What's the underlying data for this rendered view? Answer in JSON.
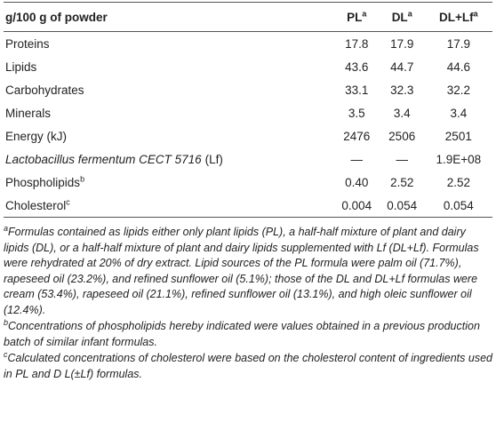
{
  "table": {
    "header": [
      {
        "text": "g/100 g of powder"
      },
      {
        "text": "PL",
        "sup": "a"
      },
      {
        "text": "DL",
        "sup": "a"
      },
      {
        "text": "DL+Lf",
        "sup": "a"
      }
    ],
    "rows": [
      {
        "label": {
          "text": "Proteins"
        },
        "cells": [
          "17.8",
          "17.9",
          "17.9"
        ]
      },
      {
        "label": {
          "text": "Lipids"
        },
        "cells": [
          "43.6",
          "44.7",
          "44.6"
        ]
      },
      {
        "label": {
          "text": "Carbohydrates"
        },
        "cells": [
          "33.1",
          "32.3",
          "32.2"
        ]
      },
      {
        "label": {
          "text": "Minerals"
        },
        "cells": [
          "3.5",
          "3.4",
          "3.4"
        ]
      },
      {
        "label": {
          "text": "Energy (kJ)"
        },
        "cells": [
          "2476",
          "2506",
          "2501"
        ]
      },
      {
        "label": {
          "text": "Lactobacillus fermentum CECT 5716",
          "italic": true,
          "suffix": "(Lf)"
        },
        "cells": [
          "—",
          "—",
          "1.9E+08"
        ]
      },
      {
        "label": {
          "text": "Phospholipids",
          "sup": "b"
        },
        "cells": [
          "0.40",
          "2.52",
          "2.52"
        ]
      },
      {
        "label": {
          "text": "Cholesterol",
          "sup": "c"
        },
        "cells": [
          "0.004",
          "0.054",
          "0.054"
        ]
      }
    ]
  },
  "footnotes": [
    {
      "mark": "a",
      "text": "Formulas contained as lipids either only plant lipids (PL), a half-half mixture of plant and dairy lipids (DL), or a half-half mixture of plant and dairy lipids supplemented with Lf (DL+Lf). Formulas were rehydrated at 20% of dry extract. Lipid sources of the PL formula were palm oil (71.7%), rapeseed oil (23.2%), and refined sunflower oil (5.1%); those of the DL and DL+Lf formulas were cream (53.4%), rapeseed oil (21.1%), refined sunflower oil (13.1%), and high oleic sunflower oil (12.4%)."
    },
    {
      "mark": "b",
      "text": "Concentrations of phospholipids hereby indicated were values obtained in a previous production batch of similar infant formulas."
    },
    {
      "mark": "c",
      "text": "Calculated concentrations of cholesterol were based on the cholesterol content of ingredients used in PL and D L(±Lf) formulas."
    }
  ]
}
